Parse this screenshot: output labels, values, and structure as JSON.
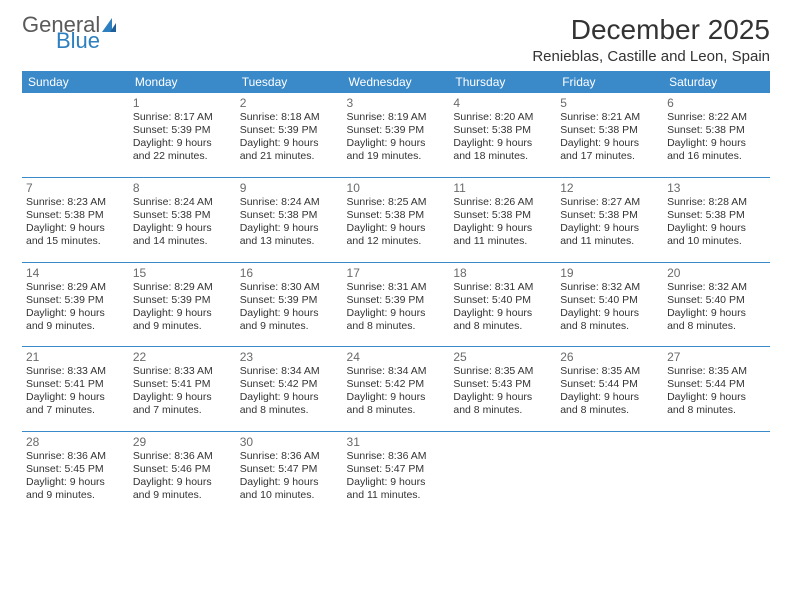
{
  "brand": {
    "part1": "General",
    "part2": "Blue"
  },
  "title": "December 2025",
  "location": "Renieblas, Castille and Leon, Spain",
  "colors": {
    "header_bg": "#3a89c9",
    "header_fg": "#ffffff",
    "rule": "#3a89c9",
    "brand_gray": "#5a5a5a",
    "brand_blue": "#2d7fbf",
    "text": "#333333",
    "daynum": "#6a6a6a",
    "background": "#ffffff"
  },
  "typography": {
    "title_fontsize": 28,
    "location_fontsize": 15,
    "day_header_fontsize": 12,
    "daynum_fontsize": 12,
    "body_fontsize": 10.5
  },
  "day_headers": [
    "Sunday",
    "Monday",
    "Tuesday",
    "Wednesday",
    "Thursday",
    "Friday",
    "Saturday"
  ],
  "weeks": [
    [
      {
        "n": "",
        "sr": "",
        "ss": "",
        "dl": ""
      },
      {
        "n": "1",
        "sr": "Sunrise: 8:17 AM",
        "ss": "Sunset: 5:39 PM",
        "dl": "Daylight: 9 hours and 22 minutes."
      },
      {
        "n": "2",
        "sr": "Sunrise: 8:18 AM",
        "ss": "Sunset: 5:39 PM",
        "dl": "Daylight: 9 hours and 21 minutes."
      },
      {
        "n": "3",
        "sr": "Sunrise: 8:19 AM",
        "ss": "Sunset: 5:39 PM",
        "dl": "Daylight: 9 hours and 19 minutes."
      },
      {
        "n": "4",
        "sr": "Sunrise: 8:20 AM",
        "ss": "Sunset: 5:38 PM",
        "dl": "Daylight: 9 hours and 18 minutes."
      },
      {
        "n": "5",
        "sr": "Sunrise: 8:21 AM",
        "ss": "Sunset: 5:38 PM",
        "dl": "Daylight: 9 hours and 17 minutes."
      },
      {
        "n": "6",
        "sr": "Sunrise: 8:22 AM",
        "ss": "Sunset: 5:38 PM",
        "dl": "Daylight: 9 hours and 16 minutes."
      }
    ],
    [
      {
        "n": "7",
        "sr": "Sunrise: 8:23 AM",
        "ss": "Sunset: 5:38 PM",
        "dl": "Daylight: 9 hours and 15 minutes."
      },
      {
        "n": "8",
        "sr": "Sunrise: 8:24 AM",
        "ss": "Sunset: 5:38 PM",
        "dl": "Daylight: 9 hours and 14 minutes."
      },
      {
        "n": "9",
        "sr": "Sunrise: 8:24 AM",
        "ss": "Sunset: 5:38 PM",
        "dl": "Daylight: 9 hours and 13 minutes."
      },
      {
        "n": "10",
        "sr": "Sunrise: 8:25 AM",
        "ss": "Sunset: 5:38 PM",
        "dl": "Daylight: 9 hours and 12 minutes."
      },
      {
        "n": "11",
        "sr": "Sunrise: 8:26 AM",
        "ss": "Sunset: 5:38 PM",
        "dl": "Daylight: 9 hours and 11 minutes."
      },
      {
        "n": "12",
        "sr": "Sunrise: 8:27 AM",
        "ss": "Sunset: 5:38 PM",
        "dl": "Daylight: 9 hours and 11 minutes."
      },
      {
        "n": "13",
        "sr": "Sunrise: 8:28 AM",
        "ss": "Sunset: 5:38 PM",
        "dl": "Daylight: 9 hours and 10 minutes."
      }
    ],
    [
      {
        "n": "14",
        "sr": "Sunrise: 8:29 AM",
        "ss": "Sunset: 5:39 PM",
        "dl": "Daylight: 9 hours and 9 minutes."
      },
      {
        "n": "15",
        "sr": "Sunrise: 8:29 AM",
        "ss": "Sunset: 5:39 PM",
        "dl": "Daylight: 9 hours and 9 minutes."
      },
      {
        "n": "16",
        "sr": "Sunrise: 8:30 AM",
        "ss": "Sunset: 5:39 PM",
        "dl": "Daylight: 9 hours and 9 minutes."
      },
      {
        "n": "17",
        "sr": "Sunrise: 8:31 AM",
        "ss": "Sunset: 5:39 PM",
        "dl": "Daylight: 9 hours and 8 minutes."
      },
      {
        "n": "18",
        "sr": "Sunrise: 8:31 AM",
        "ss": "Sunset: 5:40 PM",
        "dl": "Daylight: 9 hours and 8 minutes."
      },
      {
        "n": "19",
        "sr": "Sunrise: 8:32 AM",
        "ss": "Sunset: 5:40 PM",
        "dl": "Daylight: 9 hours and 8 minutes."
      },
      {
        "n": "20",
        "sr": "Sunrise: 8:32 AM",
        "ss": "Sunset: 5:40 PM",
        "dl": "Daylight: 9 hours and 8 minutes."
      }
    ],
    [
      {
        "n": "21",
        "sr": "Sunrise: 8:33 AM",
        "ss": "Sunset: 5:41 PM",
        "dl": "Daylight: 9 hours and 7 minutes."
      },
      {
        "n": "22",
        "sr": "Sunrise: 8:33 AM",
        "ss": "Sunset: 5:41 PM",
        "dl": "Daylight: 9 hours and 7 minutes."
      },
      {
        "n": "23",
        "sr": "Sunrise: 8:34 AM",
        "ss": "Sunset: 5:42 PM",
        "dl": "Daylight: 9 hours and 8 minutes."
      },
      {
        "n": "24",
        "sr": "Sunrise: 8:34 AM",
        "ss": "Sunset: 5:42 PM",
        "dl": "Daylight: 9 hours and 8 minutes."
      },
      {
        "n": "25",
        "sr": "Sunrise: 8:35 AM",
        "ss": "Sunset: 5:43 PM",
        "dl": "Daylight: 9 hours and 8 minutes."
      },
      {
        "n": "26",
        "sr": "Sunrise: 8:35 AM",
        "ss": "Sunset: 5:44 PM",
        "dl": "Daylight: 9 hours and 8 minutes."
      },
      {
        "n": "27",
        "sr": "Sunrise: 8:35 AM",
        "ss": "Sunset: 5:44 PM",
        "dl": "Daylight: 9 hours and 8 minutes."
      }
    ],
    [
      {
        "n": "28",
        "sr": "Sunrise: 8:36 AM",
        "ss": "Sunset: 5:45 PM",
        "dl": "Daylight: 9 hours and 9 minutes."
      },
      {
        "n": "29",
        "sr": "Sunrise: 8:36 AM",
        "ss": "Sunset: 5:46 PM",
        "dl": "Daylight: 9 hours and 9 minutes."
      },
      {
        "n": "30",
        "sr": "Sunrise: 8:36 AM",
        "ss": "Sunset: 5:47 PM",
        "dl": "Daylight: 9 hours and 10 minutes."
      },
      {
        "n": "31",
        "sr": "Sunrise: 8:36 AM",
        "ss": "Sunset: 5:47 PM",
        "dl": "Daylight: 9 hours and 11 minutes."
      },
      {
        "n": "",
        "sr": "",
        "ss": "",
        "dl": ""
      },
      {
        "n": "",
        "sr": "",
        "ss": "",
        "dl": ""
      },
      {
        "n": "",
        "sr": "",
        "ss": "",
        "dl": ""
      }
    ]
  ]
}
